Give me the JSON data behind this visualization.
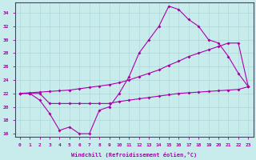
{
  "xlabel": "Windchill (Refroidissement éolien,°C)",
  "xlim": [
    -0.5,
    23.5
  ],
  "ylim": [
    15.5,
    35.5
  ],
  "yticks": [
    16,
    18,
    20,
    22,
    24,
    26,
    28,
    30,
    32,
    34
  ],
  "xticks": [
    0,
    1,
    2,
    3,
    4,
    5,
    6,
    7,
    8,
    9,
    10,
    11,
    12,
    13,
    14,
    15,
    16,
    17,
    18,
    19,
    20,
    21,
    22,
    23
  ],
  "bg_color": "#c8ecec",
  "grid_color": "#b0d8d8",
  "line_color": "#aa00aa",
  "line1": [
    22,
    22,
    21,
    19,
    16.5,
    17,
    16,
    16,
    19.5,
    20,
    22,
    24.5,
    28,
    30,
    32,
    35,
    34.5,
    33,
    32,
    30,
    29.5,
    27.5,
    25,
    23
  ],
  "line2": [
    22,
    22.1,
    22.2,
    22.3,
    22.4,
    22.5,
    22.7,
    22.9,
    23.1,
    23.3,
    23.6,
    24.0,
    24.5,
    25.0,
    25.5,
    26.2,
    26.8,
    27.5,
    28.0,
    28.5,
    29.0,
    29.5,
    29.5,
    23
  ],
  "line3": [
    22,
    22,
    22,
    20.5,
    20.5,
    20.5,
    20.5,
    20.5,
    20.5,
    20.5,
    20.8,
    21.0,
    21.2,
    21.4,
    21.6,
    21.8,
    22.0,
    22.1,
    22.2,
    22.3,
    22.4,
    22.5,
    22.6,
    23
  ]
}
